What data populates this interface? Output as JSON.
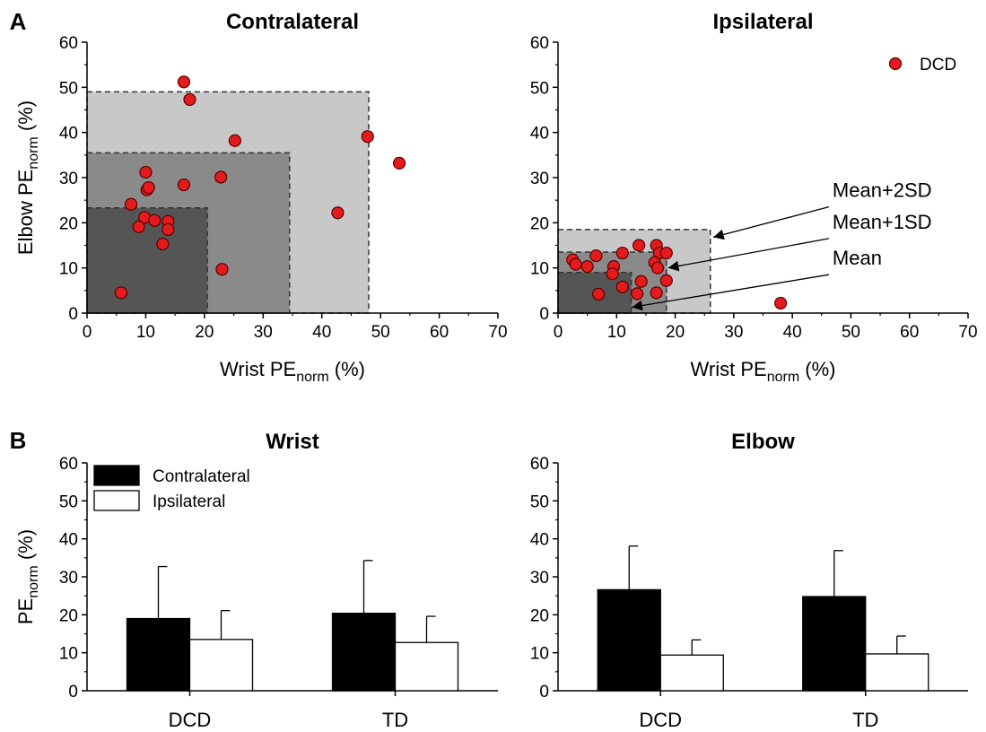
{
  "colors": {
    "point_fill": "#e41a1c",
    "sd2_fill": "#c8c8c8",
    "sd1_fill": "#8a8a8a",
    "mean_fill": "#555555",
    "bar_contralateral": "#000000",
    "bar_ipsilateral": "#ffffff"
  },
  "panel_labels": {
    "a": "A",
    "b": "B"
  },
  "chart_data": [
    {
      "type": "scatter",
      "title": "Contralateral",
      "xlabel": {
        "main": "Wrist PE",
        "sub": "norm",
        "unit": " (%)"
      },
      "ylabel": {
        "main": "Elbow PE",
        "sub": "norm",
        "unit": " (%)"
      },
      "xlim": [
        0,
        70
      ],
      "ylim": [
        0,
        60
      ],
      "xticks": [
        0,
        10,
        20,
        30,
        40,
        50,
        60,
        70
      ],
      "yticks": [
        0,
        10,
        20,
        30,
        40,
        50,
        60
      ],
      "regions": [
        {
          "x": 48,
          "y": 49,
          "level": "sd2"
        },
        {
          "x": 34.5,
          "y": 35.5,
          "level": "sd1"
        },
        {
          "x": 20.5,
          "y": 23.3,
          "level": "mean"
        }
      ],
      "series": [
        {
          "points": [
            [
              16.5,
              51.2
            ],
            [
              17.5,
              47.3
            ],
            [
              25.2,
              38.2
            ],
            [
              47.8,
              39.1
            ],
            [
              53.2,
              33.2
            ],
            [
              42.7,
              22.2
            ],
            [
              10.0,
              31.2
            ],
            [
              10.2,
              27.3
            ],
            [
              10.5,
              27.8
            ],
            [
              16.5,
              28.4
            ],
            [
              22.8,
              30.1
            ],
            [
              7.5,
              24.1
            ],
            [
              9.8,
              21.2
            ],
            [
              11.5,
              20.5
            ],
            [
              13.8,
              20.3
            ],
            [
              13.8,
              18.5
            ],
            [
              8.8,
              19.1
            ],
            [
              12.9,
              15.3
            ],
            [
              23.0,
              9.7
            ],
            [
              5.8,
              4.5
            ]
          ]
        }
      ]
    },
    {
      "type": "scatter",
      "title": "Ipsilateral",
      "xlabel": {
        "main": "Wrist PE",
        "sub": "norm",
        "unit": " (%)"
      },
      "xlim": [
        0,
        70
      ],
      "ylim": [
        0,
        60
      ],
      "xticks": [
        0,
        10,
        20,
        30,
        40,
        50,
        60,
        70
      ],
      "yticks": [
        0,
        10,
        20,
        30,
        40,
        50,
        60
      ],
      "legend": [
        {
          "label": "DCD"
        }
      ],
      "regions": [
        {
          "x": 26,
          "y": 18.5,
          "level": "sd2"
        },
        {
          "x": 18.5,
          "y": 13.5,
          "level": "sd1"
        },
        {
          "x": 12.5,
          "y": 9.0,
          "level": "mean"
        }
      ],
      "annotations": [
        {
          "text": "Mean+2SD",
          "tx": 49,
          "ty": 24.5,
          "ax": 26.5,
          "ay": 16.8
        },
        {
          "text": "Mean+1SD",
          "tx": 49,
          "ty": 17.5,
          "ax": 18.8,
          "ay": 10.0
        },
        {
          "text": "Mean",
          "tx": 49,
          "ty": 9.5,
          "ax": 12.6,
          "ay": 1.3
        }
      ],
      "series": [
        {
          "points": [
            [
              2.5,
              11.8
            ],
            [
              3.0,
              10.8
            ],
            [
              5.0,
              10.3
            ],
            [
              6.5,
              12.7
            ],
            [
              11.0,
              13.3
            ],
            [
              9.5,
              10.3
            ],
            [
              9.3,
              8.7
            ],
            [
              6.9,
              4.2
            ],
            [
              11.0,
              5.8
            ],
            [
              13.5,
              4.3
            ],
            [
              14.2,
              7.0
            ],
            [
              13.8,
              15.0
            ],
            [
              16.8,
              15.0
            ],
            [
              17.3,
              13.3
            ],
            [
              18.5,
              13.3
            ],
            [
              16.5,
              11.2
            ],
            [
              17.0,
              10.0
            ],
            [
              18.5,
              7.2
            ],
            [
              16.8,
              4.5
            ],
            [
              38.0,
              2.2
            ]
          ]
        }
      ]
    },
    {
      "type": "bar",
      "title": "Wrist",
      "ylabel": {
        "main": "PE",
        "sub": "norm",
        "unit": " (%)"
      },
      "categories": [
        "DCD",
        "TD"
      ],
      "ylim": [
        0,
        60
      ],
      "yticks": [
        0,
        10,
        20,
        30,
        40,
        50,
        60
      ],
      "series": [
        {
          "name": "Contralateral",
          "values": [
            19.0,
            20.4
          ],
          "errors": [
            13.7,
            13.9
          ]
        },
        {
          "name": "Ipsilateral",
          "values": [
            13.5,
            12.7
          ],
          "errors": [
            7.6,
            6.9
          ]
        }
      ]
    },
    {
      "type": "bar",
      "title": "Elbow",
      "categories": [
        "DCD",
        "TD"
      ],
      "ylim": [
        0,
        60
      ],
      "yticks": [
        0,
        10,
        20,
        30,
        40,
        50,
        60
      ],
      "series": [
        {
          "values": [
            26.6,
            24.8
          ],
          "errors": [
            11.5,
            12.1
          ]
        },
        {
          "values": [
            9.4,
            9.7
          ],
          "errors": [
            4.0,
            4.7
          ]
        }
      ]
    }
  ]
}
